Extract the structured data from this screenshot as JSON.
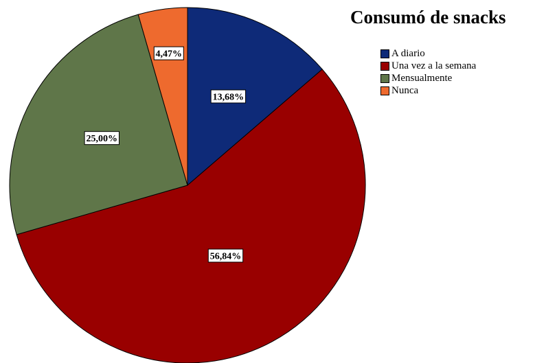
{
  "chart_data": {
    "type": "pie",
    "title": "Consumó de snacks",
    "legend_position": "top-right",
    "start_angle": "12 o'clock",
    "direction": "clockwise",
    "slices": [
      {
        "name": "A diario",
        "value": 13.68,
        "label": "13,68%",
        "color": "#0e2a78"
      },
      {
        "name": "Una vez a la semana",
        "value": 56.84,
        "label": "56,84%",
        "color": "#990000"
      },
      {
        "name": "Mensualmente",
        "value": 25.0,
        "label": "25,00%",
        "color": "#5f7649"
      },
      {
        "name": "Nunca",
        "value": 4.47,
        "label": "4,47%",
        "color": "#ee6a2e"
      }
    ]
  }
}
